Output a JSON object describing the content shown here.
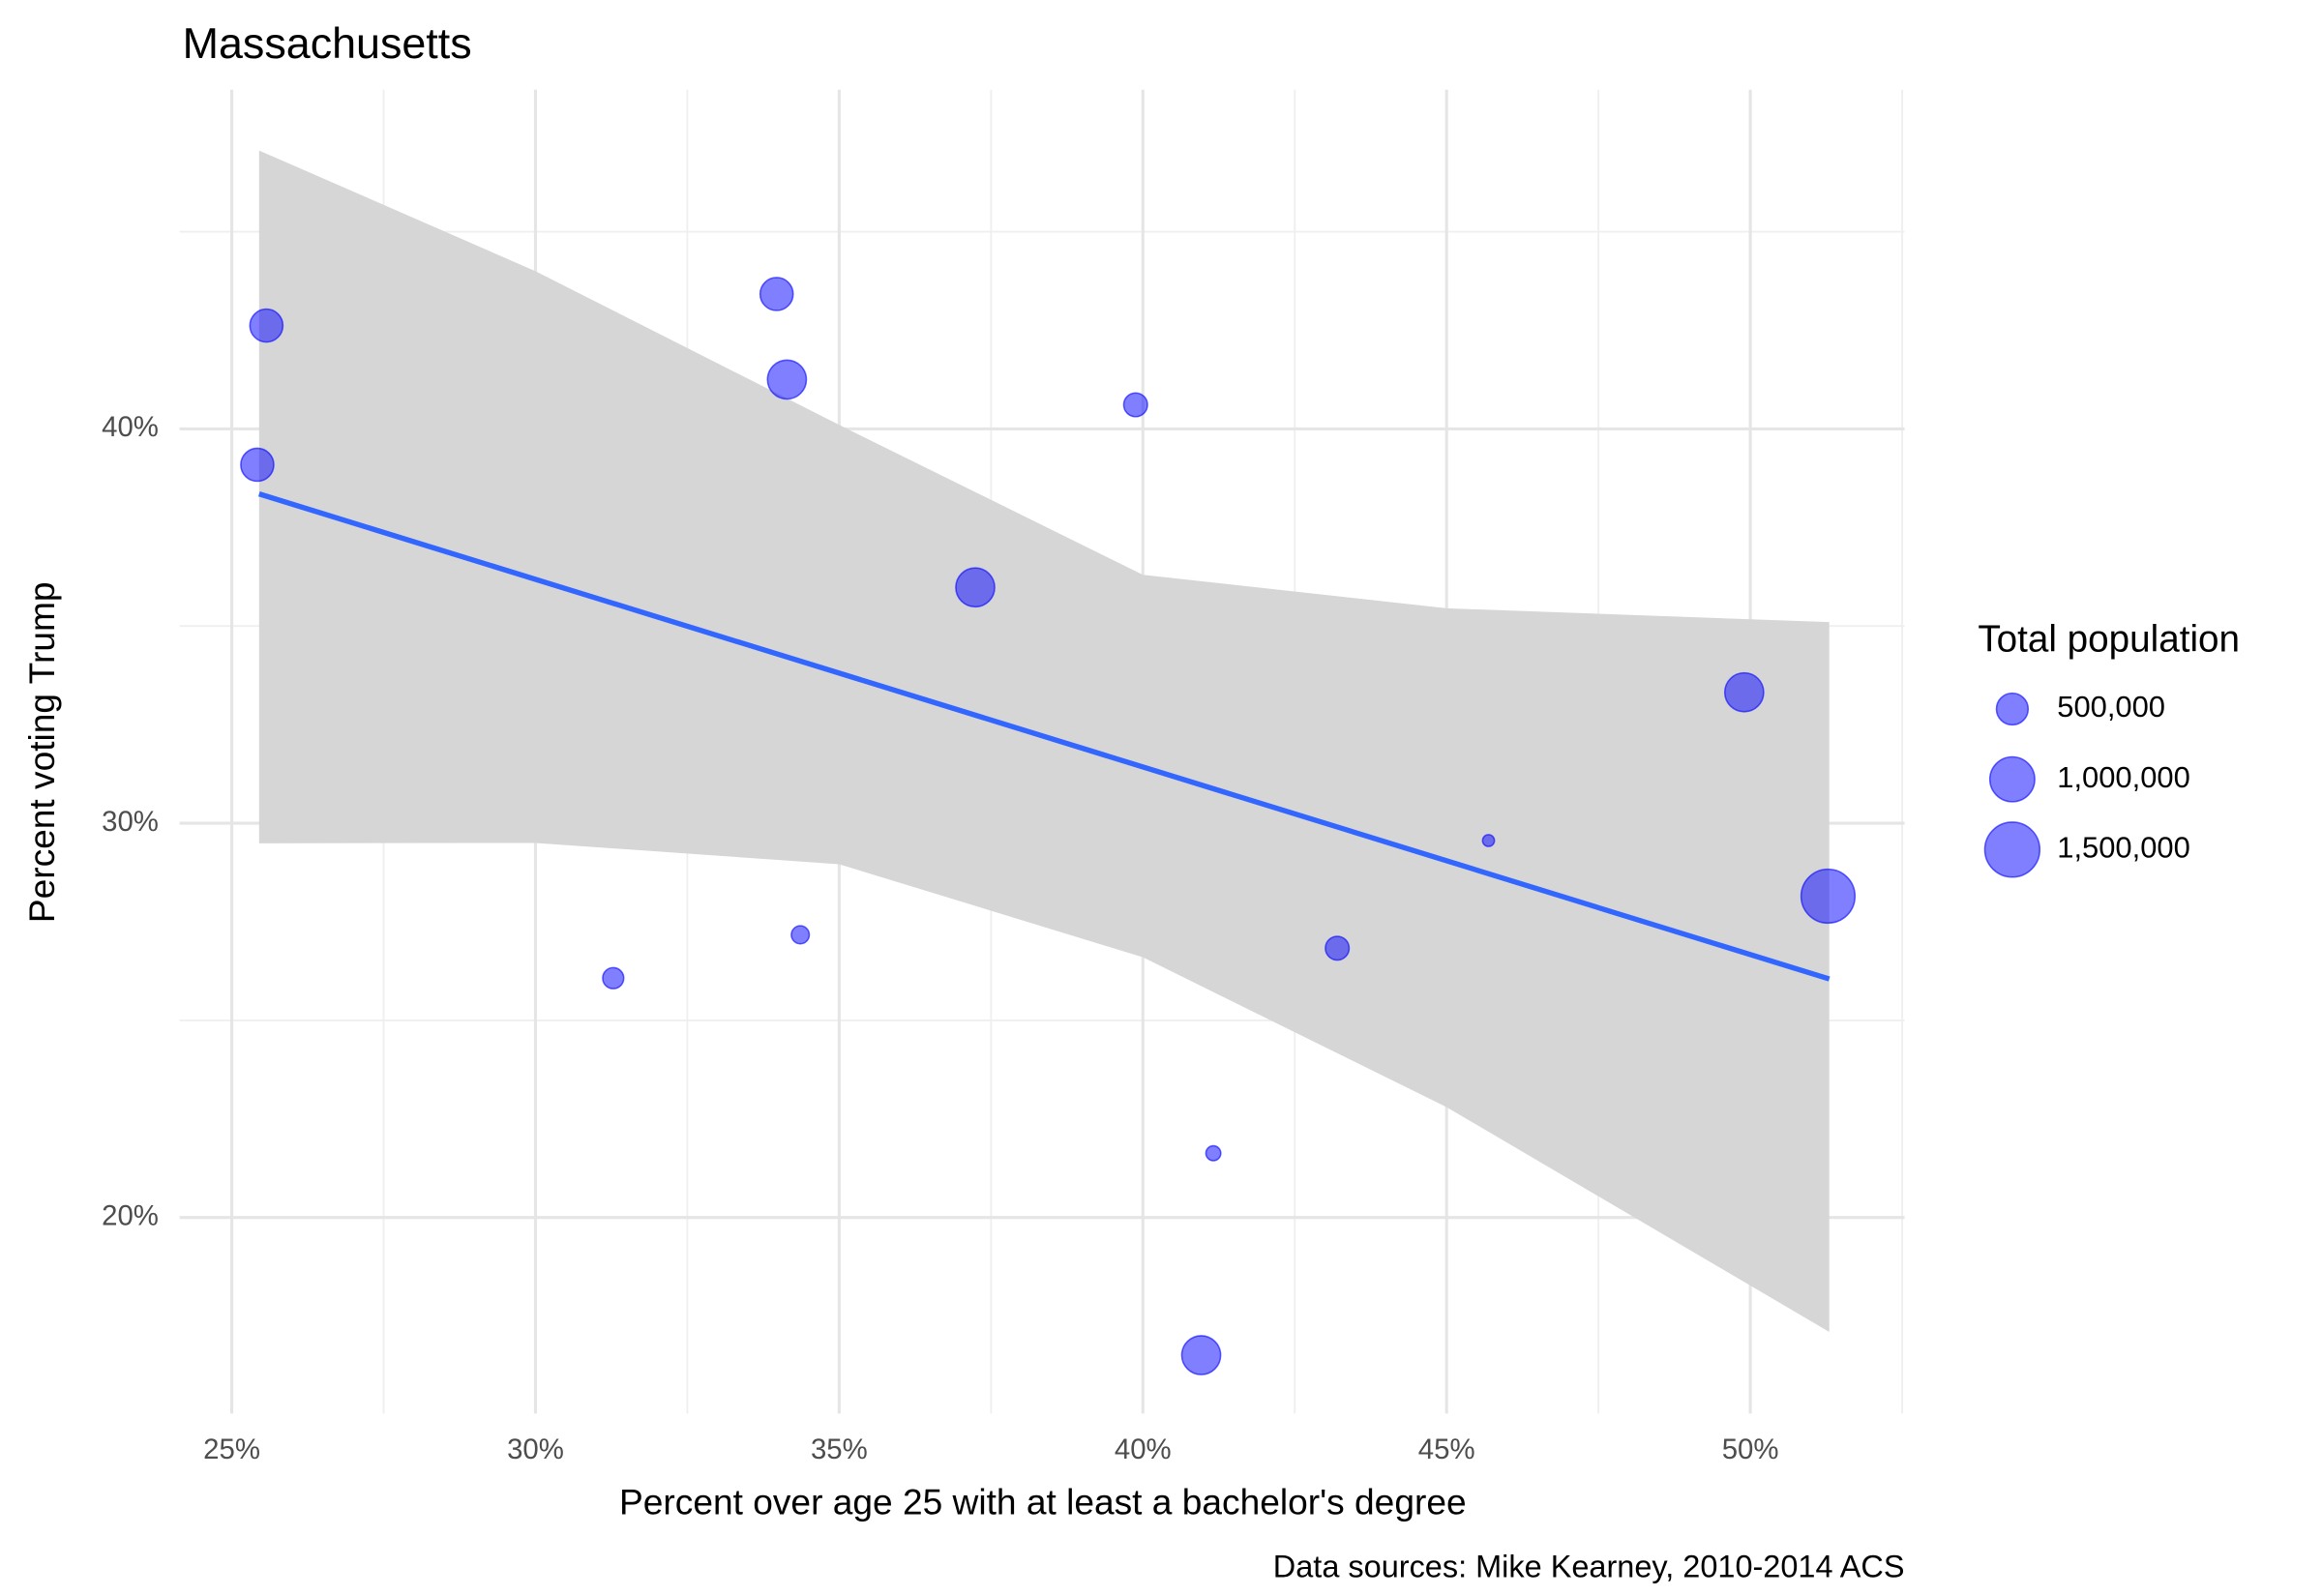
{
  "chart_data": {
    "type": "scatter",
    "title": "Massachusetts",
    "x_label": "Percent over age 25 with at least a bachelor's degree",
    "y_label": "Percent voting Trump",
    "caption": "Data sources: Mike Kearney, 2010-2014 ACS",
    "xlim": [
      24.14,
      52.54
    ],
    "ylim": [
      15.03,
      48.6
    ],
    "xticks": [
      {
        "value": 25,
        "label": "25%"
      },
      {
        "value": 30,
        "label": "30%"
      },
      {
        "value": 35,
        "label": "35%"
      },
      {
        "value": 40,
        "label": "40%"
      },
      {
        "value": 45,
        "label": "45%"
      },
      {
        "value": 50,
        "label": "50%"
      }
    ],
    "yticks": [
      {
        "value": 20,
        "label": "20%"
      },
      {
        "value": 30,
        "label": "30%"
      },
      {
        "value": 40,
        "label": "40%"
      }
    ],
    "x_minor_ticks": [
      27.5,
      32.5,
      37.5,
      42.5,
      47.5,
      52.5
    ],
    "y_minor_ticks": [
      25,
      35,
      45
    ],
    "grid": true,
    "color": "#0000ff",
    "x": [
      25.57,
      25.42,
      33.97,
      34.14,
      39.88,
      37.24,
      49.9,
      51.28,
      45.69,
      43.2,
      31.28,
      34.36,
      41.16,
      40.96
    ],
    "y": [
      42.62,
      39.09,
      43.42,
      41.25,
      40.61,
      35.98,
      33.32,
      28.15,
      29.56,
      26.83,
      26.07,
      27.17,
      21.63,
      16.51
    ],
    "sizes": [
      540000,
      540000,
      540000,
      750000,
      280000,
      750000,
      750000,
      1440000,
      70000,
      280000,
      220000,
      160000,
      110000,
      750000
    ],
    "fit": {
      "color": "#3366ff",
      "x": [
        25.45,
        51.3
      ],
      "y": [
        38.35,
        26.05
      ]
    },
    "band": {
      "color": "#d6d6d6",
      "x": [
        25.45,
        30,
        35,
        40,
        45,
        51.3
      ],
      "upper": [
        47.06,
        44.0,
        40.1,
        36.3,
        35.45,
        35.1
      ],
      "lower": [
        29.49,
        29.5,
        28.96,
        26.6,
        22.8,
        17.1
      ]
    },
    "legend": {
      "title": "Total population",
      "position": "right",
      "sizes": [
        500000,
        1000000,
        1500000
      ],
      "labels": [
        "500,000",
        "1,000,000",
        "1,500,000"
      ]
    }
  }
}
